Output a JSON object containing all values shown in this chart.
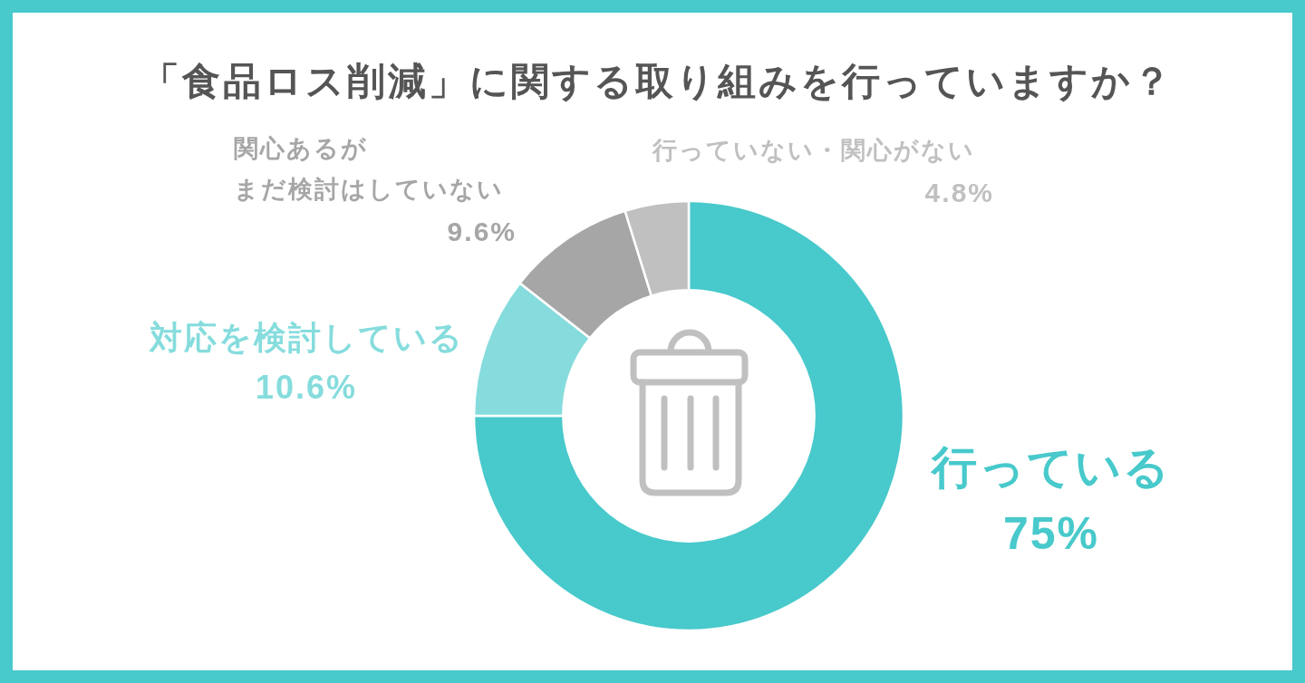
{
  "chart_data": {
    "type": "donut",
    "title": "「食品ロス削減」に関する取り組みを行っていますか？",
    "categories": [
      "行っている",
      "対応を検討している",
      "関心あるがまだ検討はしていない",
      "行っていない・関心がない"
    ],
    "values": [
      75,
      10.6,
      9.6,
      4.8
    ],
    "colors": [
      "#48c9cb",
      "#86dcdd",
      "#a6a6a6",
      "#c0c0c0"
    ],
    "value_labels": [
      "75%",
      "10.6%",
      "9.6%",
      "4.8%"
    ]
  }
}
